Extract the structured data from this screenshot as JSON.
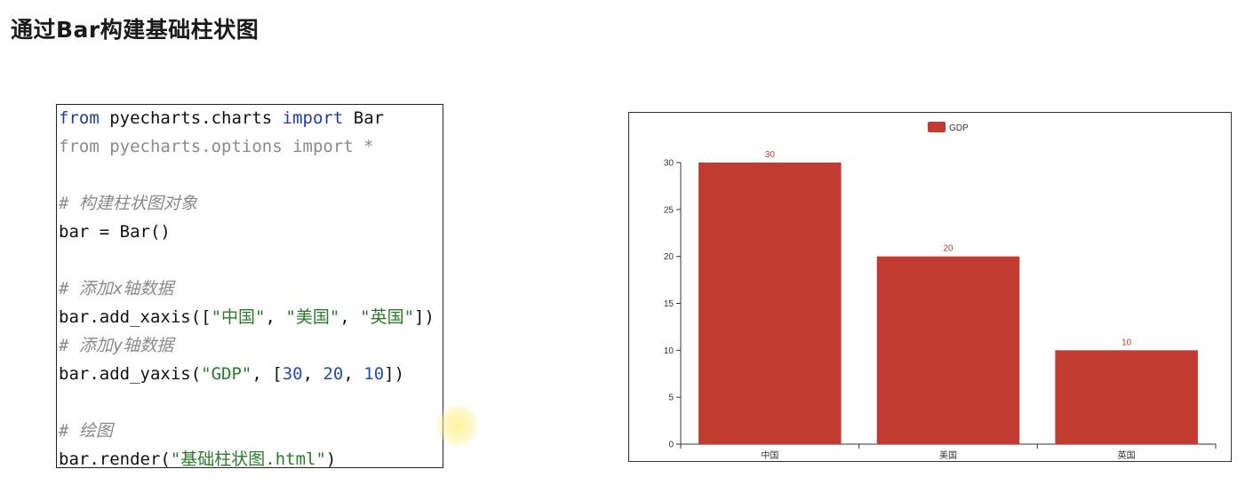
{
  "slide": {
    "title": "通过Bar构建基础柱状图"
  },
  "code": {
    "lines": [
      {
        "segments": [
          {
            "t": "from",
            "c": "kw"
          },
          {
            "t": " pyecharts.charts ",
            "c": ""
          },
          {
            "t": "import",
            "c": "kw"
          },
          {
            "t": " Bar",
            "c": ""
          }
        ]
      },
      {
        "segments": [
          {
            "t": "from pyecharts.options import *",
            "c": "dim"
          }
        ]
      },
      {
        "segments": []
      },
      {
        "segments": [
          {
            "t": "# 构建柱状图对象",
            "c": "cmt"
          }
        ]
      },
      {
        "segments": [
          {
            "t": "bar = Bar()",
            "c": ""
          }
        ]
      },
      {
        "segments": []
      },
      {
        "segments": [
          {
            "t": "# 添加x轴数据",
            "c": "cmt"
          }
        ]
      },
      {
        "segments": [
          {
            "t": "bar.add_xaxis([",
            "c": ""
          },
          {
            "t": "\"中国\"",
            "c": "str"
          },
          {
            "t": ", ",
            "c": ""
          },
          {
            "t": "\"美国\"",
            "c": "str"
          },
          {
            "t": ", ",
            "c": ""
          },
          {
            "t": "\"英国\"",
            "c": "str"
          },
          {
            "t": "])",
            "c": ""
          }
        ]
      },
      {
        "segments": [
          {
            "t": "# 添加y轴数据",
            "c": "cmt"
          }
        ]
      },
      {
        "segments": [
          {
            "t": "bar.add_yaxis(",
            "c": ""
          },
          {
            "t": "\"GDP\"",
            "c": "str"
          },
          {
            "t": ", [",
            "c": ""
          },
          {
            "t": "30",
            "c": "num"
          },
          {
            "t": ", ",
            "c": ""
          },
          {
            "t": "20",
            "c": "num"
          },
          {
            "t": ", ",
            "c": ""
          },
          {
            "t": "10",
            "c": "num"
          },
          {
            "t": "])",
            "c": ""
          }
        ]
      },
      {
        "segments": []
      },
      {
        "segments": [
          {
            "t": "# 绘图",
            "c": "cmt"
          }
        ]
      },
      {
        "segments": [
          {
            "t": "bar.render(",
            "c": ""
          },
          {
            "t": "\"基础柱状图.html\"",
            "c": "str"
          },
          {
            "t": ")",
            "c": ""
          }
        ]
      }
    ]
  },
  "chart_data": {
    "type": "bar",
    "categories": [
      "中国",
      "美国",
      "英国"
    ],
    "series": [
      {
        "name": "GDP",
        "values": [
          30,
          20,
          10
        ]
      }
    ],
    "yticks": [
      0,
      5,
      10,
      15,
      20,
      25,
      30
    ],
    "ylim": [
      0,
      30
    ],
    "legend": "top-center",
    "bar_color": "#c23b31",
    "label_color": "#c23b31",
    "grid": false
  }
}
